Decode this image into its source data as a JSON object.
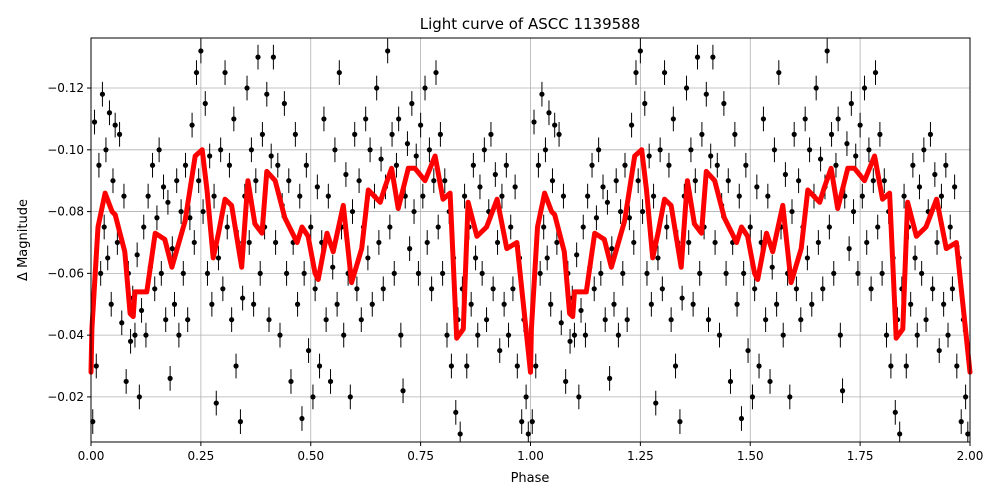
{
  "chart_data": {
    "type": "scatter",
    "title": "Light curve of ASCC 1139588",
    "xlabel": "Phase",
    "ylabel": "Δ Magnitude",
    "xlim": [
      0,
      2
    ],
    "ylim": [
      -0.0054,
      -0.1362
    ],
    "y_inverted": true,
    "grid": true,
    "xticks": [
      "0.00",
      "0.25",
      "0.50",
      "0.75",
      "1.00",
      "1.25",
      "1.50",
      "1.75",
      "2.00"
    ],
    "xtick_values": [
      0,
      0.25,
      0.5,
      0.75,
      1,
      1.25,
      1.5,
      1.75,
      2
    ],
    "yticks": [
      "−0.02",
      "−0.04",
      "−0.06",
      "−0.08",
      "−0.10",
      "−0.12"
    ],
    "ytick_values": [
      -0.02,
      -0.04,
      -0.06,
      -0.08,
      -0.1,
      -0.12
    ],
    "period_repeats": 2,
    "colors": {
      "data": "#000000",
      "model": "#ff0000",
      "grid": "#b0b0b0"
    },
    "model_curve": {
      "phase": [
        0.0,
        0.002,
        0.016,
        0.032,
        0.048,
        0.055,
        0.077,
        0.089,
        0.096,
        0.1,
        0.127,
        0.146,
        0.168,
        0.184,
        0.214,
        0.237,
        0.253,
        0.264,
        0.278,
        0.29,
        0.305,
        0.32,
        0.343,
        0.357,
        0.373,
        0.389,
        0.4,
        0.419,
        0.441,
        0.469,
        0.48,
        0.494,
        0.51,
        0.517,
        0.537,
        0.551,
        0.574,
        0.593,
        0.616,
        0.631,
        0.658,
        0.669,
        0.684,
        0.699,
        0.722,
        0.737,
        0.76,
        0.783,
        0.801,
        0.817,
        0.832,
        0.847,
        0.858,
        0.878,
        0.9,
        0.924,
        0.946,
        0.969,
        1.0
      ],
      "mag": [
        -0.028,
        -0.042,
        -0.075,
        -0.086,
        -0.08,
        -0.079,
        -0.067,
        -0.047,
        -0.046,
        -0.054,
        -0.054,
        -0.073,
        -0.071,
        -0.062,
        -0.077,
        -0.098,
        -0.1,
        -0.087,
        -0.065,
        -0.073,
        -0.084,
        -0.082,
        -0.062,
        -0.09,
        -0.076,
        -0.073,
        -0.093,
        -0.09,
        -0.078,
        -0.07,
        -0.075,
        -0.072,
        -0.06,
        -0.058,
        -0.073,
        -0.067,
        -0.082,
        -0.057,
        -0.068,
        -0.087,
        -0.083,
        -0.088,
        -0.094,
        -0.081,
        -0.094,
        -0.094,
        -0.09,
        -0.098,
        -0.084,
        -0.086,
        -0.039,
        -0.042,
        -0.083,
        -0.072,
        -0.075,
        -0.084,
        -0.068,
        -0.07,
        -0.028
      ]
    },
    "observations": {
      "error": 0.004,
      "points": [
        [
          0.004,
          -0.012
        ],
        [
          0.008,
          -0.109
        ],
        [
          0.012,
          -0.03
        ],
        [
          0.018,
          -0.095
        ],
        [
          0.022,
          -0.06
        ],
        [
          0.026,
          -0.118
        ],
        [
          0.03,
          -0.075
        ],
        [
          0.034,
          -0.1
        ],
        [
          0.038,
          -0.065
        ],
        [
          0.042,
          -0.112
        ],
        [
          0.046,
          -0.05
        ],
        [
          0.05,
          -0.09
        ],
        [
          0.055,
          -0.108
        ],
        [
          0.06,
          -0.07
        ],
        [
          0.065,
          -0.105
        ],
        [
          0.07,
          -0.044
        ],
        [
          0.075,
          -0.085
        ],
        [
          0.08,
          -0.025
        ],
        [
          0.085,
          -0.06
        ],
        [
          0.09,
          -0.038
        ],
        [
          0.095,
          -0.052
        ],
        [
          0.1,
          -0.04
        ],
        [
          0.105,
          -0.066
        ],
        [
          0.11,
          -0.02
        ],
        [
          0.115,
          -0.048
        ],
        [
          0.12,
          -0.075
        ],
        [
          0.125,
          -0.04
        ],
        [
          0.13,
          -0.085
        ],
        [
          0.135,
          -0.062
        ],
        [
          0.14,
          -0.095
        ],
        [
          0.145,
          -0.055
        ],
        [
          0.15,
          -0.078
        ],
        [
          0.155,
          -0.1
        ],
        [
          0.16,
          -0.06
        ],
        [
          0.165,
          -0.088
        ],
        [
          0.17,
          -0.045
        ],
        [
          0.175,
          -0.083
        ],
        [
          0.18,
          -0.026
        ],
        [
          0.185,
          -0.068
        ],
        [
          0.19,
          -0.05
        ],
        [
          0.195,
          -0.09
        ],
        [
          0.2,
          -0.04
        ],
        [
          0.205,
          -0.08
        ],
        [
          0.21,
          -0.06
        ],
        [
          0.215,
          -0.095
        ],
        [
          0.22,
          -0.045
        ],
        [
          0.225,
          -0.078
        ],
        [
          0.23,
          -0.108
        ],
        [
          0.235,
          -0.07
        ],
        [
          0.24,
          -0.125
        ],
        [
          0.245,
          -0.09
        ],
        [
          0.25,
          -0.132
        ],
        [
          0.255,
          -0.08
        ],
        [
          0.26,
          -0.115
        ],
        [
          0.265,
          -0.06
        ],
        [
          0.27,
          -0.098
        ],
        [
          0.275,
          -0.05
        ],
        [
          0.28,
          -0.085
        ],
        [
          0.285,
          -0.018
        ],
        [
          0.29,
          -0.065
        ],
        [
          0.295,
          -0.1
        ],
        [
          0.3,
          -0.055
        ],
        [
          0.305,
          -0.125
        ],
        [
          0.31,
          -0.075
        ],
        [
          0.315,
          -0.095
        ],
        [
          0.32,
          -0.045
        ],
        [
          0.325,
          -0.11
        ],
        [
          0.33,
          -0.03
        ],
        [
          0.335,
          -0.07
        ],
        [
          0.34,
          -0.012
        ],
        [
          0.345,
          -0.052
        ],
        [
          0.35,
          -0.085
        ],
        [
          0.355,
          -0.12
        ],
        [
          0.36,
          -0.07
        ],
        [
          0.365,
          -0.1
        ],
        [
          0.37,
          -0.05
        ],
        [
          0.375,
          -0.09
        ],
        [
          0.38,
          -0.13
        ],
        [
          0.385,
          -0.06
        ],
        [
          0.39,
          -0.105
        ],
        [
          0.395,
          -0.075
        ],
        [
          0.4,
          -0.118
        ],
        [
          0.405,
          -0.045
        ],
        [
          0.41,
          -0.098
        ],
        [
          0.415,
          -0.13
        ],
        [
          0.42,
          -0.07
        ],
        [
          0.425,
          -0.095
        ],
        [
          0.43,
          -0.04
        ],
        [
          0.435,
          -0.082
        ],
        [
          0.44,
          -0.115
        ],
        [
          0.445,
          -0.06
        ],
        [
          0.45,
          -0.09
        ],
        [
          0.455,
          -0.025
        ],
        [
          0.46,
          -0.07
        ],
        [
          0.465,
          -0.105
        ],
        [
          0.47,
          -0.05
        ],
        [
          0.475,
          -0.085
        ],
        [
          0.48,
          -0.013
        ],
        [
          0.485,
          -0.06
        ],
        [
          0.49,
          -0.095
        ],
        [
          0.495,
          -0.035
        ],
        [
          0.5,
          -0.075
        ],
        [
          0.505,
          -0.02
        ],
        [
          0.51,
          -0.055
        ],
        [
          0.515,
          -0.088
        ],
        [
          0.52,
          -0.03
        ],
        [
          0.525,
          -0.07
        ],
        [
          0.53,
          -0.11
        ],
        [
          0.535,
          -0.045
        ],
        [
          0.54,
          -0.085
        ],
        [
          0.545,
          -0.025
        ],
        [
          0.55,
          -0.062
        ],
        [
          0.555,
          -0.1
        ],
        [
          0.56,
          -0.05
        ],
        [
          0.565,
          -0.125
        ],
        [
          0.57,
          -0.075
        ],
        [
          0.575,
          -0.04
        ],
        [
          0.58,
          -0.092
        ],
        [
          0.585,
          -0.06
        ],
        [
          0.59,
          -0.02
        ],
        [
          0.595,
          -0.08
        ],
        [
          0.6,
          -0.105
        ],
        [
          0.605,
          -0.055
        ],
        [
          0.61,
          -0.09
        ],
        [
          0.615,
          -0.045
        ],
        [
          0.62,
          -0.075
        ],
        [
          0.625,
          -0.11
        ],
        [
          0.63,
          -0.065
        ],
        [
          0.635,
          -0.1
        ],
        [
          0.64,
          -0.05
        ],
        [
          0.645,
          -0.085
        ],
        [
          0.65,
          -0.12
        ],
        [
          0.655,
          -0.07
        ],
        [
          0.66,
          -0.097
        ],
        [
          0.665,
          -0.055
        ],
        [
          0.67,
          -0.088
        ],
        [
          0.675,
          -0.132
        ],
        [
          0.68,
          -0.075
        ],
        [
          0.685,
          -0.105
        ],
        [
          0.69,
          -0.06
        ],
        [
          0.695,
          -0.095
        ],
        [
          0.7,
          -0.11
        ],
        [
          0.705,
          -0.04
        ],
        [
          0.71,
          -0.022
        ],
        [
          0.715,
          -0.085
        ],
        [
          0.72,
          -0.102
        ],
        [
          0.725,
          -0.068
        ],
        [
          0.73,
          -0.115
        ],
        [
          0.735,
          -0.08
        ],
        [
          0.74,
          -0.098
        ],
        [
          0.745,
          -0.06
        ],
        [
          0.75,
          -0.108
        ],
        [
          0.755,
          -0.085
        ],
        [
          0.76,
          -0.12
        ],
        [
          0.765,
          -0.07
        ],
        [
          0.77,
          -0.1
        ],
        [
          0.775,
          -0.055
        ],
        [
          0.78,
          -0.09
        ],
        [
          0.785,
          -0.125
        ],
        [
          0.79,
          -0.075
        ],
        [
          0.795,
          -0.105
        ],
        [
          0.8,
          -0.06
        ],
        [
          0.805,
          -0.09
        ],
        [
          0.81,
          -0.04
        ],
        [
          0.815,
          -0.08
        ],
        [
          0.82,
          -0.03
        ],
        [
          0.825,
          -0.065
        ],
        [
          0.83,
          -0.015
        ],
        [
          0.835,
          -0.045
        ],
        [
          0.84,
          -0.008
        ],
        [
          0.845,
          -0.055
        ],
        [
          0.85,
          -0.085
        ],
        [
          0.855,
          -0.03
        ],
        [
          0.86,
          -0.075
        ],
        [
          0.865,
          -0.05
        ],
        [
          0.87,
          -0.095
        ],
        [
          0.875,
          -0.065
        ],
        [
          0.88,
          -0.04
        ],
        [
          0.885,
          -0.088
        ],
        [
          0.89,
          -0.06
        ],
        [
          0.895,
          -0.1
        ],
        [
          0.9,
          -0.045
        ],
        [
          0.905,
          -0.08
        ],
        [
          0.91,
          -0.105
        ],
        [
          0.915,
          -0.055
        ],
        [
          0.92,
          -0.092
        ],
        [
          0.925,
          -0.07
        ],
        [
          0.93,
          -0.035
        ],
        [
          0.935,
          -0.085
        ],
        [
          0.94,
          -0.05
        ],
        [
          0.945,
          -0.095
        ],
        [
          0.95,
          -0.04
        ],
        [
          0.955,
          -0.075
        ],
        [
          0.96,
          -0.055
        ],
        [
          0.965,
          -0.088
        ],
        [
          0.97,
          -0.03
        ],
        [
          0.975,
          -0.065
        ],
        [
          0.98,
          -0.012
        ],
        [
          0.985,
          -0.045
        ],
        [
          0.99,
          -0.02
        ],
        [
          0.995,
          -0.008
        ]
      ]
    }
  }
}
